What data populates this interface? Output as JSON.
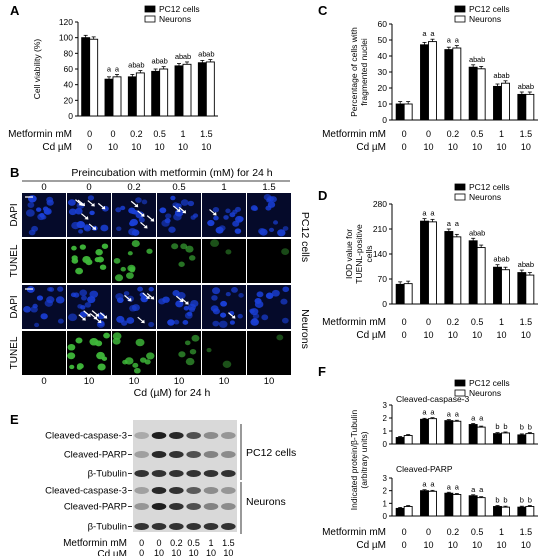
{
  "panel_letters": {
    "a": "A",
    "b": "B",
    "c": "C",
    "d": "D",
    "e": "E",
    "f": "F"
  },
  "legend": {
    "pc12": "PC12 cells",
    "neurons": "Neurons"
  },
  "row_labels": {
    "metformin": "Metformin mM",
    "cd": "Cd µM"
  },
  "metformin_values": [
    "0",
    "0",
    "0.2",
    "0.5",
    "1",
    "1.5"
  ],
  "cd_values": [
    "0",
    "10",
    "10",
    "10",
    "10",
    "10"
  ],
  "panel_b": {
    "header": "Preincubation with metformin (mM) for 24 h",
    "top_values": [
      "0",
      "0",
      "0.2",
      "0.5",
      "1",
      "1.5"
    ],
    "bottom_values": [
      "0",
      "10",
      "10",
      "10",
      "10",
      "10"
    ],
    "footer": "Cd (µM) for 24 h",
    "stain_labels": [
      "DAPI",
      "TUNEL",
      "DAPI",
      "TUNEL"
    ],
    "cell_labels": [
      "PC12 cells",
      "Neurons"
    ]
  },
  "panel_e": {
    "proteins": [
      "Cleaved-caspase-3",
      "Cleaved-PARP",
      "β-Tubulin",
      "Cleaved-caspase-3",
      "Cleaved-PARP",
      "β-Tubulin"
    ],
    "group_labels": [
      "PC12 cells",
      "Neurons"
    ],
    "metformin_label": "Metformin mM",
    "cd_label": "Cd µM",
    "metformin_values": [
      "0",
      "0",
      "0.2",
      "0.5",
      "1",
      "1.5"
    ],
    "cd_values": [
      "0",
      "10",
      "10",
      "10",
      "10",
      "10"
    ]
  },
  "colors": {
    "pc12": "#000000",
    "neurons": "#ffffff",
    "dapi": "#1a3fd6",
    "tunel": "#3fb83a"
  },
  "chart_data": [
    {
      "id": "A",
      "type": "bar",
      "ylabel": "Cell viability (%)",
      "ylim": [
        0,
        120
      ],
      "yticks": [
        0,
        20,
        40,
        60,
        80,
        100,
        120
      ],
      "series": [
        {
          "name": "PC12 cells",
          "values": [
            100,
            47,
            50,
            57,
            64,
            68
          ]
        },
        {
          "name": "Neurons",
          "values": [
            98,
            50,
            55,
            60,
            66,
            69
          ]
        }
      ],
      "sig": [
        "",
        "a",
        "ab",
        "ab",
        "ab",
        "ab"
      ]
    },
    {
      "id": "C",
      "type": "bar",
      "ylabel": "Percentage of cells with fragmented nuclei",
      "ylim": [
        0,
        60
      ],
      "yticks": [
        0,
        10,
        20,
        30,
        40,
        50,
        60
      ],
      "series": [
        {
          "name": "PC12 cells",
          "values": [
            10,
            47,
            44,
            33,
            21,
            16
          ]
        },
        {
          "name": "Neurons",
          "values": [
            10,
            49,
            45,
            32,
            23,
            16
          ]
        }
      ],
      "sig": [
        "",
        "a",
        "a",
        "ab",
        "ab",
        "ab"
      ]
    },
    {
      "id": "D",
      "type": "bar",
      "ylabel": "IOD value for TUENL-positive cells",
      "ylim": [
        0,
        280
      ],
      "yticks": [
        0,
        70,
        140,
        210,
        280
      ],
      "series": [
        {
          "name": "PC12 cells",
          "values": [
            55,
            232,
            203,
            177,
            103,
            88
          ]
        },
        {
          "name": "Neurons",
          "values": [
            57,
            230,
            188,
            158,
            96,
            81
          ]
        }
      ],
      "sig": [
        "",
        "a",
        "a",
        "ab",
        "ab",
        "ab"
      ]
    },
    {
      "id": "F1",
      "type": "bar",
      "subtitle": "Cleaved-caspase-3",
      "ylim": [
        0,
        3
      ],
      "yticks": [
        0,
        1,
        2,
        3
      ],
      "series": [
        {
          "name": "PC12 cells",
          "values": [
            0.5,
            1.9,
            1.8,
            1.5,
            0.8,
            0.7
          ]
        },
        {
          "name": "Neurons",
          "values": [
            0.65,
            1.95,
            1.75,
            1.3,
            0.85,
            0.8
          ]
        }
      ],
      "sig": [
        "",
        "a",
        "a",
        "a",
        "b",
        "b"
      ]
    },
    {
      "id": "F2",
      "type": "bar",
      "subtitle": "Cleaved-PARP",
      "ylim": [
        0,
        3
      ],
      "yticks": [
        0,
        1,
        2,
        3
      ],
      "series": [
        {
          "name": "PC12 cells",
          "values": [
            0.6,
            2.0,
            1.8,
            1.6,
            0.75,
            0.7
          ]
        },
        {
          "name": "Neurons",
          "values": [
            0.75,
            1.95,
            1.7,
            1.45,
            0.7,
            0.75
          ]
        }
      ],
      "sig": [
        "",
        "a",
        "a",
        "a",
        "b",
        "b"
      ]
    }
  ],
  "panel_f_ylabel": "Indicated protein/β-Tubulin (arbitrary units)"
}
